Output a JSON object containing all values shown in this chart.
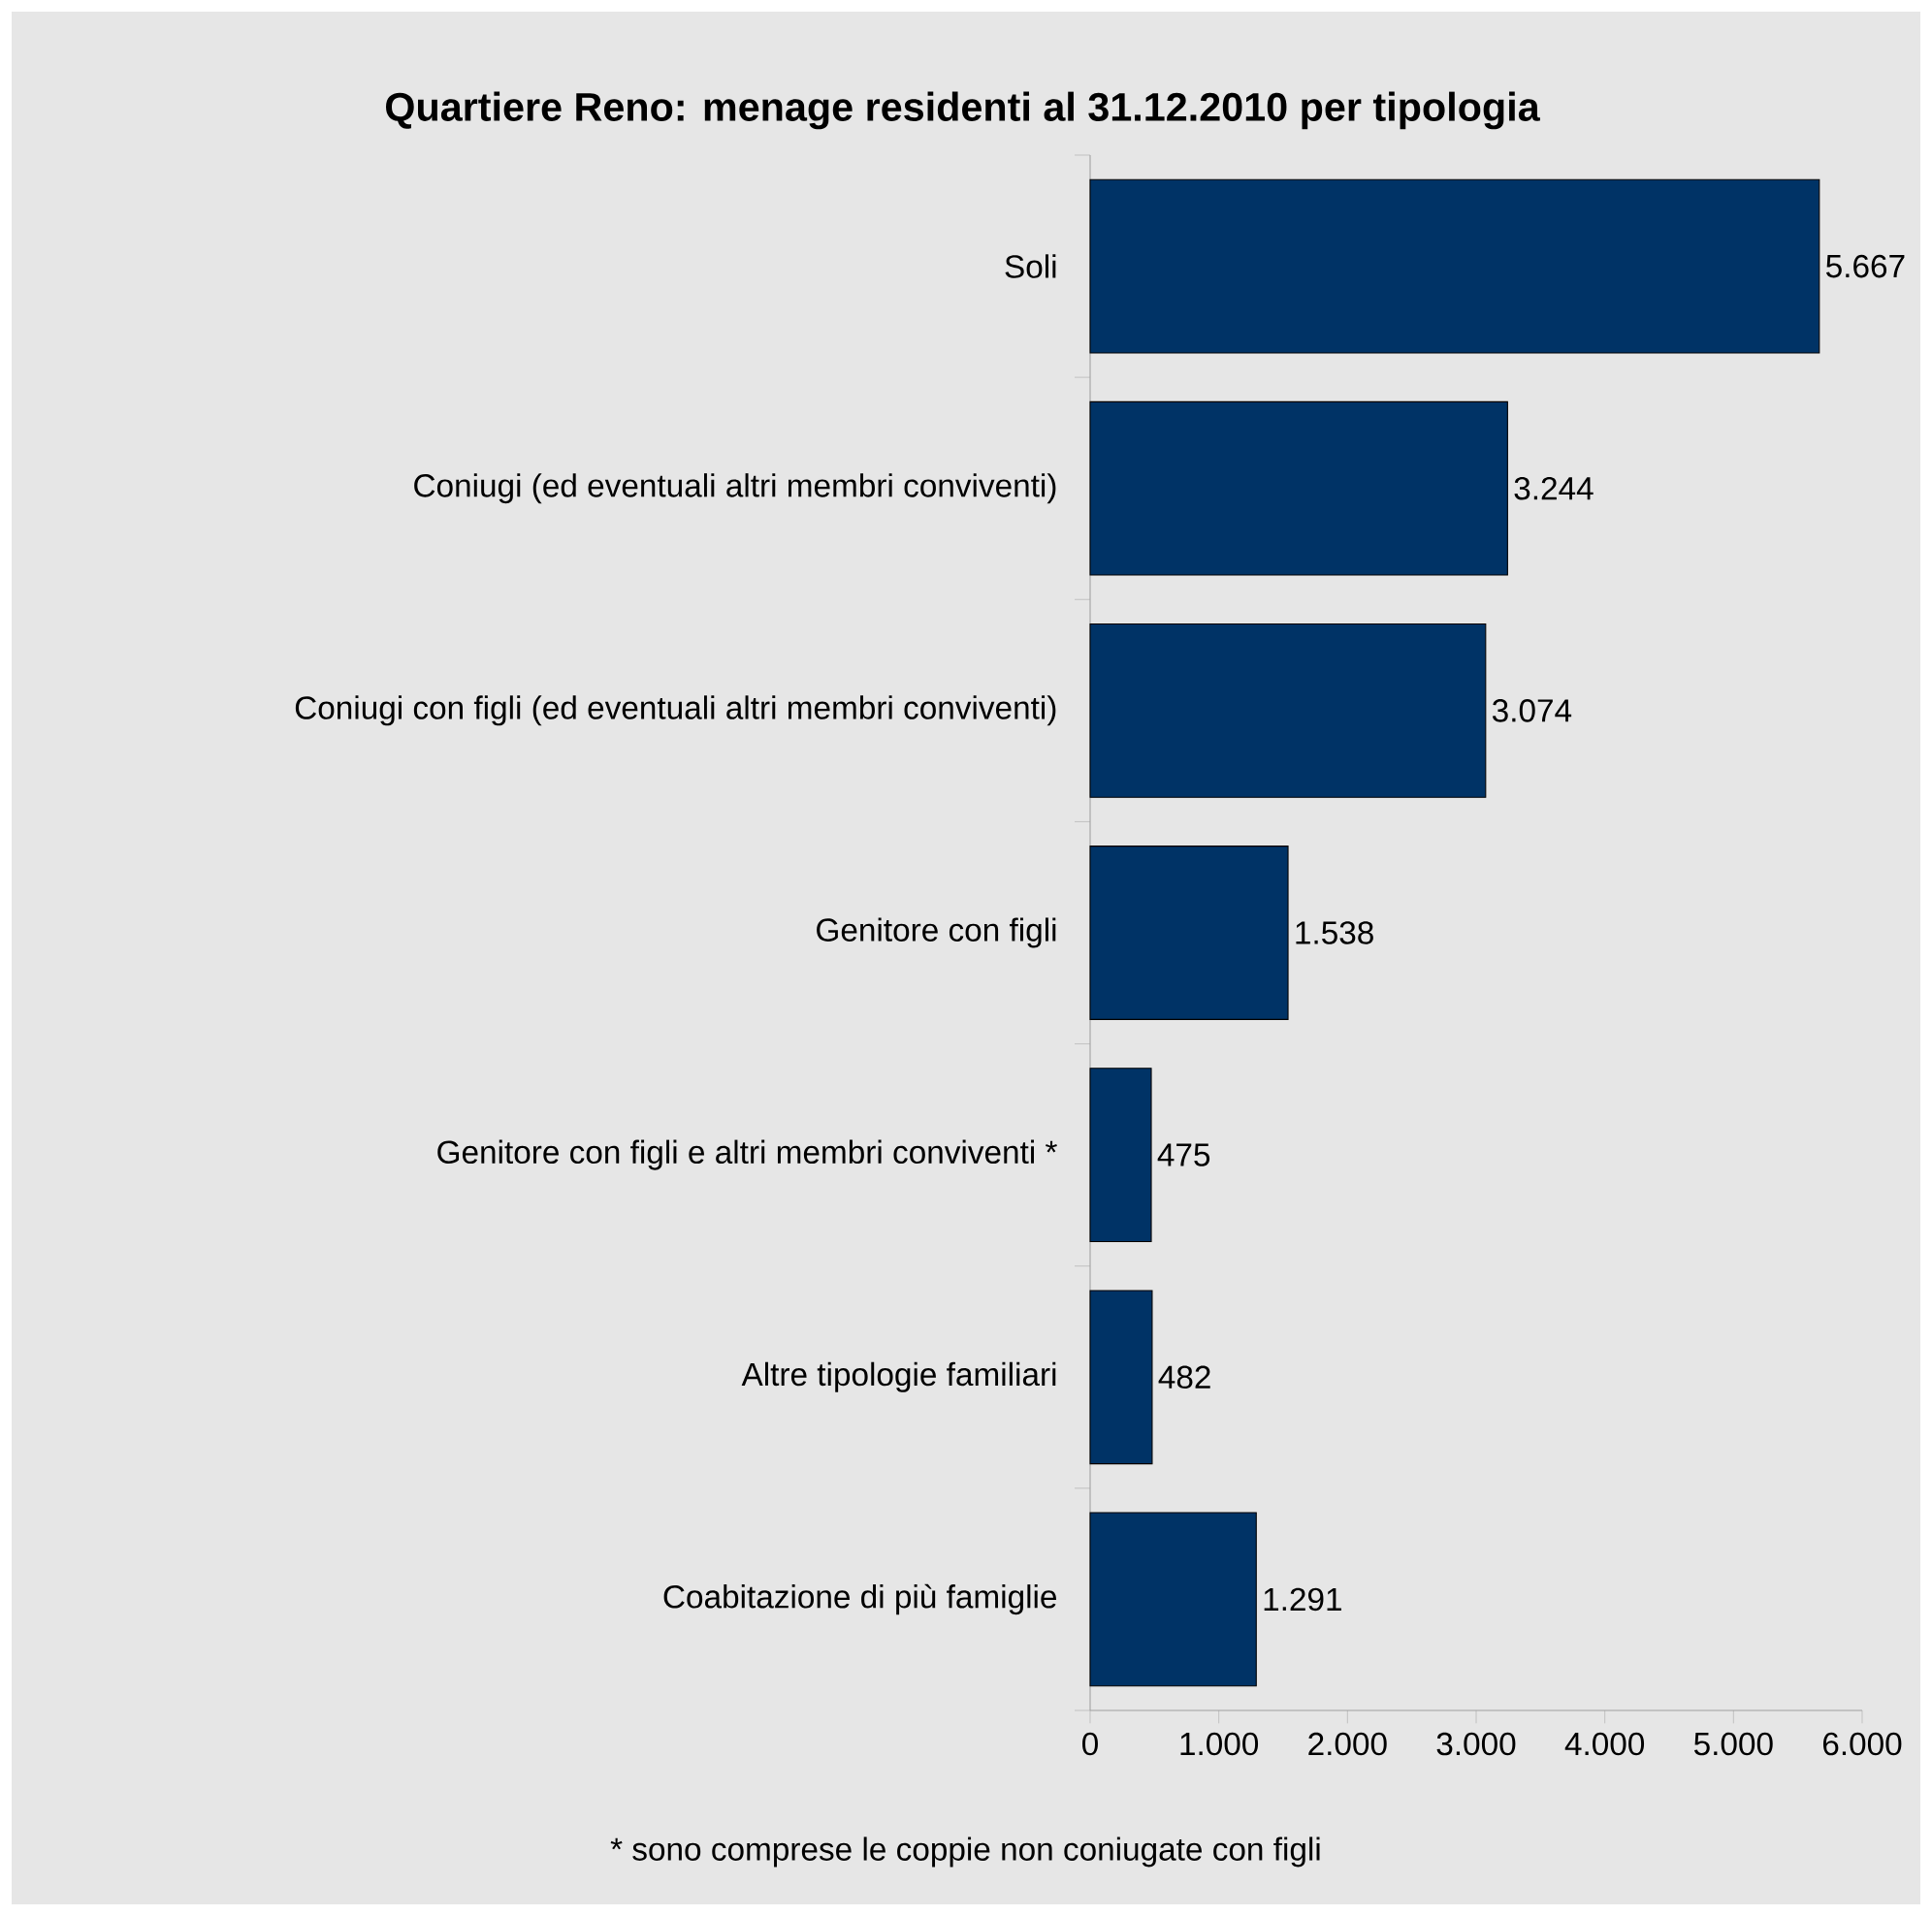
{
  "chart_data": {
    "type": "bar",
    "orientation": "horizontal",
    "title": "Quartiere Reno: menage residenti al 31.12.2010 per tipologia",
    "categories": [
      "Soli",
      "Coniugi (ed eventuali altri membri conviventi)",
      "Coniugi con figli (ed eventuali altri membri conviventi)",
      "Genitore con figli",
      "Genitore con figli e altri membri conviventi *",
      "Altre tipologie familiari",
      "Coabitazione di più famiglie"
    ],
    "values": [
      5667,
      3244,
      3074,
      1538,
      475,
      482,
      1291
    ],
    "value_labels": [
      "5.667",
      "3.244",
      "3.074",
      "1.538",
      "475",
      "482",
      "1.291"
    ],
    "color": "#003366",
    "xlim": [
      0,
      6000
    ],
    "xticks": [
      0,
      {
        "value": 1000,
        "label": "1.000"
      },
      {
        "value": 2000,
        "label": "2.000"
      },
      {
        "value": 3000,
        "label": "3.000"
      },
      {
        "value": 4000,
        "label": "4.000"
      },
      {
        "value": 5000,
        "label": "5.000"
      },
      {
        "value": 6000,
        "label": "6.000"
      }
    ],
    "annotations": [
      "* sono comprese le coppie non coniugate con figli"
    ]
  }
}
